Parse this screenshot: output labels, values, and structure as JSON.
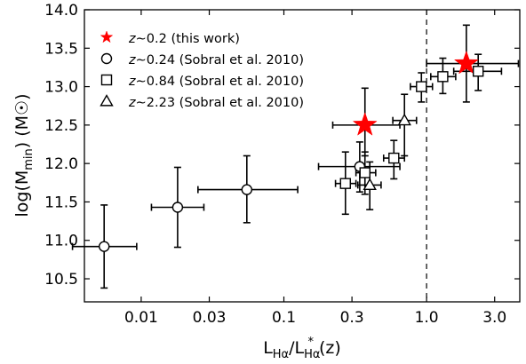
{
  "chart_data": {
    "type": "scatter",
    "xscale": "log",
    "xlim": [
      0.004,
      4.5
    ],
    "ylim": [
      10.2,
      14.0
    ],
    "xticks": [
      {
        "value": 0.01,
        "label": "0.01"
      },
      {
        "value": 0.03,
        "label": "0.03"
      },
      {
        "value": 0.1,
        "label": "0.1"
      },
      {
        "value": 0.3,
        "label": "0.3"
      },
      {
        "value": 1.0,
        "label": "1.0"
      },
      {
        "value": 3.0,
        "label": "3.0"
      }
    ],
    "yticks": [
      {
        "value": 10.5,
        "label": "10.5"
      },
      {
        "value": 11.0,
        "label": "11.0"
      },
      {
        "value": 11.5,
        "label": "11.5"
      },
      {
        "value": 12.0,
        "label": "12.0"
      },
      {
        "value": 12.5,
        "label": "12.5"
      },
      {
        "value": 13.0,
        "label": "13.0"
      },
      {
        "value": 13.5,
        "label": "13.5"
      },
      {
        "value": 14.0,
        "label": "14.0"
      }
    ],
    "xlabel": {
      "main": "L",
      "sub": "Hα",
      "mid": "/L",
      "sub2": "Hα",
      "sup2": "*",
      "tail": "(z)"
    },
    "ylabel": {
      "main": "log(M",
      "sub": "min",
      "tail": ") (M",
      "symbol": "☉",
      "close": ")"
    },
    "vline": {
      "x": 1.0,
      "style": "dashed"
    },
    "grid": false,
    "legend": {
      "position": "top-left",
      "entries": [
        {
          "marker": "star",
          "prefix": "z",
          "label": "∼0.2 (this work)",
          "color": "#ff0000"
        },
        {
          "marker": "circle",
          "prefix": "z",
          "label": "∼0.24 (Sobral et al. 2010)",
          "color": "#000000"
        },
        {
          "marker": "square",
          "prefix": "z",
          "label": "∼0.84 (Sobral et al. 2010)",
          "color": "#000000"
        },
        {
          "marker": "triangle",
          "prefix": "z",
          "label": "∼2.23 (Sobral et al. 2010)",
          "color": "#000000"
        }
      ]
    },
    "series": [
      {
        "name": "z∼0.2 (this work)",
        "marker": "star",
        "color": "#ff0000",
        "points": [
          {
            "x": 0.37,
            "y": 12.5,
            "xerr": [
              0.22,
              0.65
            ],
            "yerr": [
              12.1,
              12.98
            ]
          },
          {
            "x": 1.9,
            "y": 13.3,
            "xerr": [
              1.0,
              4.4
            ],
            "yerr": [
              12.8,
              13.8
            ]
          }
        ]
      },
      {
        "name": "z∼0.24 (Sobral et al. 2010)",
        "marker": "circle",
        "color": "#000000",
        "points": [
          {
            "x": 0.0055,
            "y": 10.92,
            "xerr": [
              0.0033,
              0.0093
            ],
            "yerr": [
              10.38,
              11.46
            ]
          },
          {
            "x": 0.018,
            "y": 11.43,
            "xerr": [
              0.0118,
              0.0275
            ],
            "yerr": [
              10.91,
              11.95
            ]
          },
          {
            "x": 0.055,
            "y": 11.66,
            "xerr": [
              0.025,
              0.125
            ],
            "yerr": [
              11.23,
              12.1
            ]
          },
          {
            "x": 0.34,
            "y": 11.96,
            "xerr": [
              0.175,
              0.65
            ],
            "yerr": [
              11.63,
              12.28
            ]
          }
        ]
      },
      {
        "name": "z∼0.84 (Sobral et al. 2010)",
        "marker": "square",
        "color": "#000000",
        "points": [
          {
            "x": 0.27,
            "y": 11.74,
            "xerr": [
              0.23,
              0.32
            ],
            "yerr": [
              11.34,
              12.15
            ]
          },
          {
            "x": 0.37,
            "y": 11.88,
            "xerr": [
              0.32,
              0.44
            ],
            "yerr": [
              11.6,
              12.15
            ]
          },
          {
            "x": 0.59,
            "y": 12.07,
            "xerr": [
              0.5,
              0.7
            ],
            "yerr": [
              11.8,
              12.3
            ]
          },
          {
            "x": 0.92,
            "y": 13.0,
            "xerr": [
              0.77,
              1.1
            ],
            "yerr": [
              12.8,
              13.18
            ]
          },
          {
            "x": 1.3,
            "y": 13.13,
            "xerr": [
              1.07,
              1.6
            ],
            "yerr": [
              12.91,
              13.37
            ]
          },
          {
            "x": 2.3,
            "y": 13.2,
            "xerr": [
              1.55,
              3.35
            ],
            "yerr": [
              12.95,
              13.42
            ]
          }
        ]
      },
      {
        "name": "z∼2.23 (Sobral et al. 2010)",
        "marker": "triangle",
        "color": "#000000",
        "points": [
          {
            "x": 0.4,
            "y": 11.72,
            "xerr": [
              0.33,
              0.48
            ],
            "yerr": [
              11.4,
              12.02
            ]
          },
          {
            "x": 0.7,
            "y": 12.56,
            "xerr": [
              0.58,
              0.85
            ],
            "yerr": [
              12.1,
              12.9
            ]
          }
        ]
      }
    ]
  }
}
